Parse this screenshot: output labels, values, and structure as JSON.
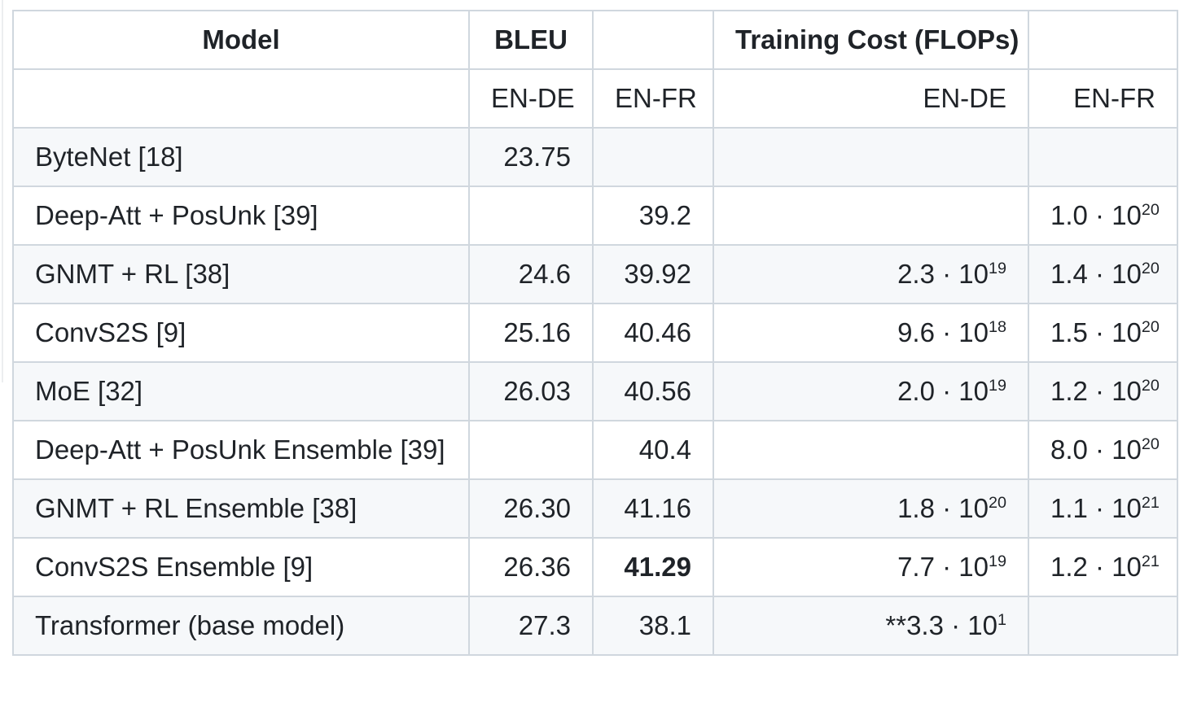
{
  "colors": {
    "background": "#ffffff",
    "table_border": "#d0d7de",
    "zebra_row": "#f6f8fa",
    "text": "#1f2328"
  },
  "table": {
    "header": [
      "Model",
      "BLEU",
      "",
      "Training Cost (FLOPs)",
      ""
    ],
    "rows": [
      {
        "subheader": true,
        "cells": [
          "",
          "EN-DE",
          "EN-FR",
          "EN-DE",
          "EN-FR"
        ]
      },
      {
        "cells": [
          "ByteNet [18]",
          "23.75",
          "",
          "",
          ""
        ]
      },
      {
        "cells": [
          "Deep-Att + PosUnk [39]",
          "",
          "39.2",
          "",
          {
            "base": "1.0 · 10",
            "sup": "20"
          }
        ]
      },
      {
        "cells": [
          "GNMT + RL [38]",
          "24.6",
          "39.92",
          {
            "base": "2.3 · 10",
            "sup": "19"
          },
          {
            "base": "1.4 · 10",
            "sup": "20"
          }
        ]
      },
      {
        "cells": [
          "ConvS2S [9]",
          "25.16",
          "40.46",
          {
            "base": "9.6 · 10",
            "sup": "18"
          },
          {
            "base": "1.5 · 10",
            "sup": "20"
          }
        ]
      },
      {
        "cells": [
          "MoE [32]",
          "26.03",
          "40.56",
          {
            "base": "2.0 · 10",
            "sup": "19"
          },
          {
            "base": "1.2 · 10",
            "sup": "20"
          }
        ]
      },
      {
        "cells": [
          "Deep-Att + PosUnk Ensemble [39]",
          "",
          "40.4",
          "",
          {
            "base": "8.0 · 10",
            "sup": "20"
          }
        ]
      },
      {
        "cells": [
          "GNMT + RL Ensemble [38]",
          "26.30",
          "41.16",
          {
            "base": "1.8 · 10",
            "sup": "20"
          },
          {
            "base": "1.1 · 10",
            "sup": "21"
          }
        ]
      },
      {
        "cells": [
          "ConvS2S Ensemble [9]",
          "26.36",
          {
            "text": "41.29",
            "bold": true
          },
          {
            "base": "7.7 · 10",
            "sup": "19"
          },
          {
            "base": "1.2 · 10",
            "sup": "21"
          }
        ]
      },
      {
        "cells": [
          "Transformer (base model)",
          "27.3",
          "38.1",
          {
            "base": "**3.3 · 10",
            "sup": "1"
          },
          ""
        ]
      }
    ]
  }
}
